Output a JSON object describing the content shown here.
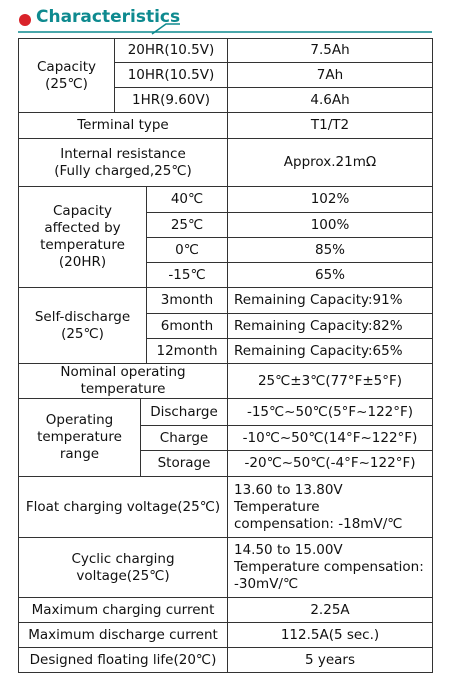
{
  "header": {
    "title": "Characteristics"
  },
  "table": {
    "sections": [
      {
        "label": [
          "Capacity",
          "(25℃)"
        ],
        "rows": [
          [
            "20HR(10.5V)",
            "7.5Ah"
          ],
          [
            "10HR(10.5V)",
            "7Ah"
          ],
          [
            "1HR(9.60V)",
            "4.6Ah"
          ]
        ]
      },
      {
        "label": [
          "Terminal type"
        ],
        "value": [
          "T1/T2"
        ]
      },
      {
        "label": [
          "Internal resistance",
          "(Fully charged,25℃)"
        ],
        "value": [
          "Approx.21mΩ"
        ]
      },
      {
        "label": [
          "Capacity",
          "affected by",
          "temperature",
          "(20HR)"
        ],
        "rows": [
          [
            "40℃",
            "102%"
          ],
          [
            "25℃",
            "100%"
          ],
          [
            "0℃",
            "85%"
          ],
          [
            "-15℃",
            "65%"
          ]
        ]
      },
      {
        "label": [
          "Self-discharge",
          "(25℃)"
        ],
        "rows": [
          [
            "3month",
            "Remaining Capacity:91%"
          ],
          [
            "6month",
            "Remaining Capacity:82%"
          ],
          [
            "12month",
            "Remaining Capacity:65%"
          ]
        ]
      },
      {
        "label": [
          "Nominal operating",
          "temperature"
        ],
        "value": [
          "25℃±3℃(77°F±5°F)"
        ]
      },
      {
        "label": [
          "Operating",
          "temperature",
          "range"
        ],
        "rows": [
          [
            "Discharge",
            "-15℃~50℃(5°F~122°F)"
          ],
          [
            "Charge",
            "-10℃~50℃(14°F~122°F)"
          ],
          [
            "Storage",
            "-20℃~50℃(-4°F~122°F)"
          ]
        ]
      },
      {
        "label": [
          "Float charging voltage(25℃)"
        ],
        "value": [
          "13.60 to 13.80V Temperature",
          "compensation: -18mV/℃"
        ]
      },
      {
        "label": [
          "Cyclic charging voltage(25℃)"
        ],
        "value": [
          "14.50 to 15.00V",
          "Temperature compensation:",
          "-30mV/℃"
        ]
      },
      {
        "label": [
          "Maximum charging current"
        ],
        "value": [
          "2.25A"
        ]
      },
      {
        "label": [
          "Maximum discharge current"
        ],
        "value": [
          "112.5A(5 sec.)"
        ]
      },
      {
        "label": [
          "Designed floating life(20℃)"
        ],
        "value": [
          "5 years"
        ]
      }
    ]
  }
}
